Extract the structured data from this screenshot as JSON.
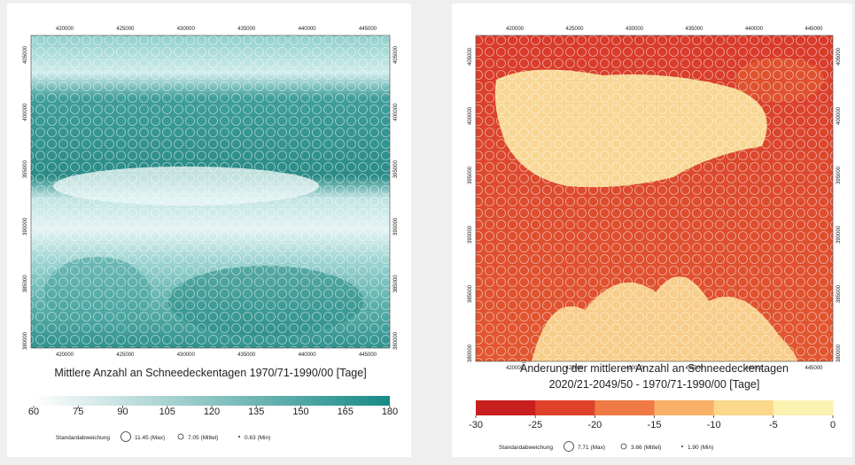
{
  "panels": [
    {
      "x_ticks": [
        "420000",
        "425000",
        "430000",
        "435000",
        "440000",
        "445000"
      ],
      "y_ticks": [
        "405000",
        "400000",
        "395000",
        "390000",
        "385000",
        "380000"
      ],
      "title": [
        "Mittlere Anzahl an Schneedeckentagen 1970/71-1990/00 [Tage]"
      ],
      "colorbar": {
        "ticks": [
          60,
          75,
          90,
          105,
          120,
          135,
          150,
          165,
          180
        ],
        "colors": [
          "#ffffff",
          "#178a86"
        ],
        "continuous": true
      },
      "legend": {
        "label": "Standardabweichung",
        "max": "11.45 (Max)",
        "mean": "7.05 (Mittel)",
        "min": "0.63 (Min)"
      }
    },
    {
      "x_ticks": [
        "420000",
        "425000",
        "430000",
        "435000",
        "440000",
        "445000"
      ],
      "y_ticks": [
        "405000",
        "400000",
        "395000",
        "390000",
        "385000",
        "380000"
      ],
      "title": [
        "Änderung der mittleren Anzahl an Schneedeckentagen",
        "2020/21-2049/50 - 1970/71-1990/00 [Tage]"
      ],
      "colorbar": {
        "ticks": [
          -30,
          -25,
          -20,
          -15,
          -10,
          -5,
          0
        ],
        "colors": [
          "#c8201e",
          "#e0412a",
          "#f07a45",
          "#f8b066",
          "#fbd88a",
          "#fbf1b0"
        ],
        "continuous": false
      },
      "legend": {
        "label": "Standardabweichung",
        "max": "7.71 (Max)",
        "mean": "3.66 (Mittel)",
        "min": "1.90 (Min)"
      }
    }
  ]
}
